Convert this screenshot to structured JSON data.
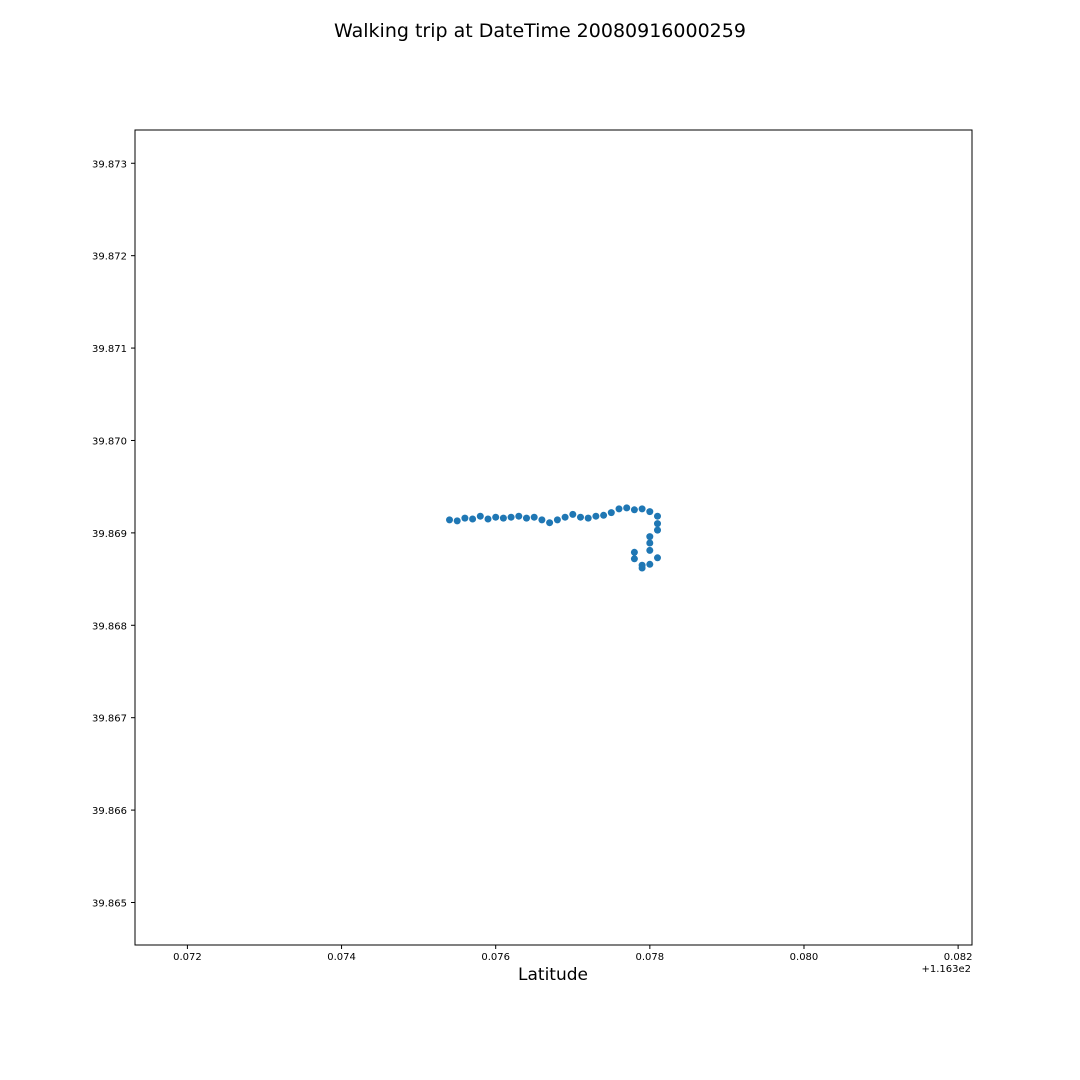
{
  "chart_data": {
    "type": "scatter",
    "title": "Walking trip at DateTime 20080916000259",
    "xlabel": "Latitude",
    "ylabel": "",
    "x_offset_label": "+1.163e2",
    "xlim": [
      0.07132,
      0.08218
    ],
    "ylim": [
      39.86454,
      39.87336
    ],
    "x_ticks": [
      {
        "value": 0.072,
        "label": "0.072"
      },
      {
        "value": 0.074,
        "label": "0.074"
      },
      {
        "value": 0.076,
        "label": "0.076"
      },
      {
        "value": 0.078,
        "label": "0.078"
      },
      {
        "value": 0.08,
        "label": "0.080"
      },
      {
        "value": 0.082,
        "label": "0.082"
      }
    ],
    "y_ticks": [
      {
        "value": 39.865,
        "label": "39.865"
      },
      {
        "value": 39.866,
        "label": "39.866"
      },
      {
        "value": 39.867,
        "label": "39.867"
      },
      {
        "value": 39.868,
        "label": "39.868"
      },
      {
        "value": 39.869,
        "label": "39.869"
      },
      {
        "value": 39.87,
        "label": "39.870"
      },
      {
        "value": 39.871,
        "label": "39.871"
      },
      {
        "value": 39.872,
        "label": "39.872"
      },
      {
        "value": 39.873,
        "label": "39.873"
      }
    ],
    "grid": false,
    "series": [
      {
        "color": "#1f77b4",
        "points": [
          [
            0.0754,
            39.86914
          ],
          [
            0.0755,
            39.86913
          ],
          [
            0.0756,
            39.86916
          ],
          [
            0.0757,
            39.86915
          ],
          [
            0.0758,
            39.86918
          ],
          [
            0.0759,
            39.86915
          ],
          [
            0.076,
            39.86917
          ],
          [
            0.0761,
            39.86916
          ],
          [
            0.0762,
            39.86917
          ],
          [
            0.0763,
            39.86918
          ],
          [
            0.0764,
            39.86916
          ],
          [
            0.0765,
            39.86917
          ],
          [
            0.0766,
            39.86914
          ],
          [
            0.0767,
            39.86911
          ],
          [
            0.0768,
            39.86914
          ],
          [
            0.0769,
            39.86917
          ],
          [
            0.077,
            39.8692
          ],
          [
            0.0771,
            39.86917
          ],
          [
            0.0772,
            39.86916
          ],
          [
            0.0773,
            39.86918
          ],
          [
            0.0774,
            39.86919
          ],
          [
            0.0775,
            39.86922
          ],
          [
            0.0776,
            39.86926
          ],
          [
            0.0777,
            39.86927
          ],
          [
            0.0778,
            39.86925
          ],
          [
            0.0779,
            39.86926
          ],
          [
            0.078,
            39.86923
          ],
          [
            0.0781,
            39.86918
          ],
          [
            0.0781,
            39.8691
          ],
          [
            0.0781,
            39.86903
          ],
          [
            0.078,
            39.86896
          ],
          [
            0.078,
            39.86889
          ],
          [
            0.078,
            39.86881
          ],
          [
            0.0781,
            39.86873
          ],
          [
            0.078,
            39.86866
          ],
          [
            0.0779,
            39.86862
          ],
          [
            0.0779,
            39.86865
          ],
          [
            0.0778,
            39.86872
          ],
          [
            0.0778,
            39.86879
          ]
        ]
      }
    ]
  }
}
